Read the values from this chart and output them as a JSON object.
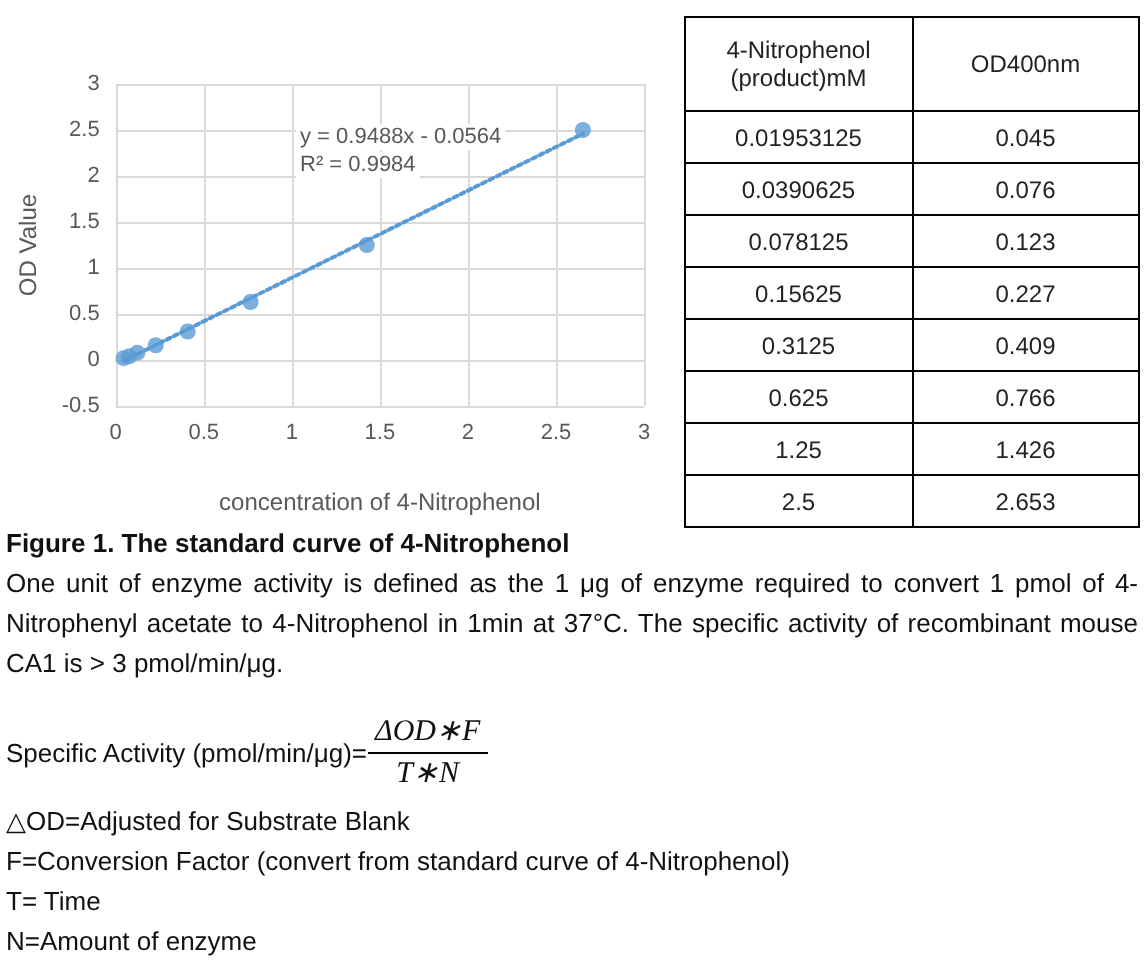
{
  "chart_data": [
    {
      "type": "scatter",
      "xlabel": "concentration of 4-Nitrophenol",
      "ylabel": "OD Value",
      "annotations": [
        "y = 0.9488x - 0.0564",
        "R² = 0.9984"
      ],
      "xlim": [
        0,
        3
      ],
      "xticks": [
        0,
        0.5,
        1,
        1.5,
        2,
        2.5,
        3
      ],
      "ylim": [
        -0.5,
        3
      ],
      "yticks": [
        -0.5,
        0,
        0.5,
        1,
        1.5,
        2,
        2.5,
        3
      ],
      "grid": true,
      "marker": "circle",
      "series": [
        {
          "type": "scatter",
          "color": "#5b9bd5",
          "x": [
            0.045,
            0.076,
            0.123,
            0.227,
            0.409,
            0.766,
            1.426,
            2.653
          ],
          "values": [
            0.02,
            0.04,
            0.08,
            0.16,
            0.31,
            0.63,
            1.25,
            2.5
          ]
        },
        {
          "type": "line",
          "color": "#5b9bd5",
          "line_style": "dotted",
          "marker": "none",
          "x": [
            0.045,
            2.653
          ],
          "values": [
            -0.01,
            2.46
          ]
        }
      ]
    },
    {
      "type": "other",
      "annotations": [
        "4-Nitrophenol (product)mM",
        "OD400nm",
        "0.01953125",
        "0.045",
        "0.0390625",
        "0.076",
        "0.078125",
        "0.123",
        "0.15625",
        "0.227",
        "0.3125",
        "0.409",
        "0.625",
        "0.766",
        "1.25",
        "1.426",
        "2.5",
        "2.653"
      ]
    },
    {
      "type": "other",
      "title": "Figure 1. The standard curve of 4-Nitrophenol",
      "annotations": [
        "One unit of enzyme activity is defined as the 1 μg of enzyme required to convert 1 pmol of 4-Nitrophenyl acetate to 4-Nitrophenol in 1min at 37°C. The specific activity of recombinant mouse CA1 is > 3 pmol/min/μg.",
        "Specific Activity (pmol/min/μg)=",
        "ΔOD∗F",
        "T∗N",
        "△OD=Adjusted for Substrate Blank",
        "F=Conversion Factor (convert from standard curve of 4-Nitrophenol)",
        "T= Time",
        "N=Amount of enzyme"
      ]
    }
  ]
}
